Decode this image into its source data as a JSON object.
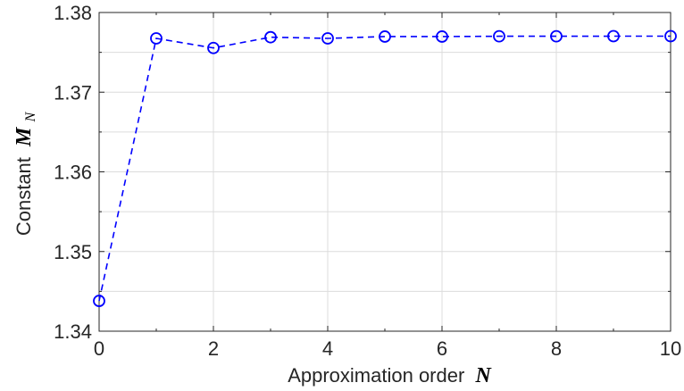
{
  "chart_data": {
    "type": "line",
    "xlabel_text": "Approximation order",
    "xlabel_math": "N",
    "ylabel_text": "Constant",
    "ylabel_math": "M",
    "ylabel_math_sub": "N",
    "x": [
      0,
      1,
      2,
      3,
      4,
      5,
      6,
      7,
      8,
      9,
      10
    ],
    "series": [
      {
        "values": [
          1.3438,
          1.37675,
          1.37555,
          1.3769,
          1.37675,
          1.37698,
          1.37698,
          1.37702,
          1.37702,
          1.37703,
          1.37703
        ],
        "line_style": "dashed",
        "marker": "circle",
        "color": "#0000ff"
      }
    ],
    "xlim": [
      0,
      10
    ],
    "ylim": [
      1.34,
      1.38
    ],
    "xticks": [
      "0",
      "2",
      "4",
      "6",
      "8",
      "10"
    ],
    "yticks": [
      "1.34",
      "1.35",
      "1.36",
      "1.37",
      "1.38"
    ],
    "grid": true
  },
  "colors": {
    "series": "#0000ff",
    "grid": "#dcdcdc",
    "axis": "#262626"
  }
}
